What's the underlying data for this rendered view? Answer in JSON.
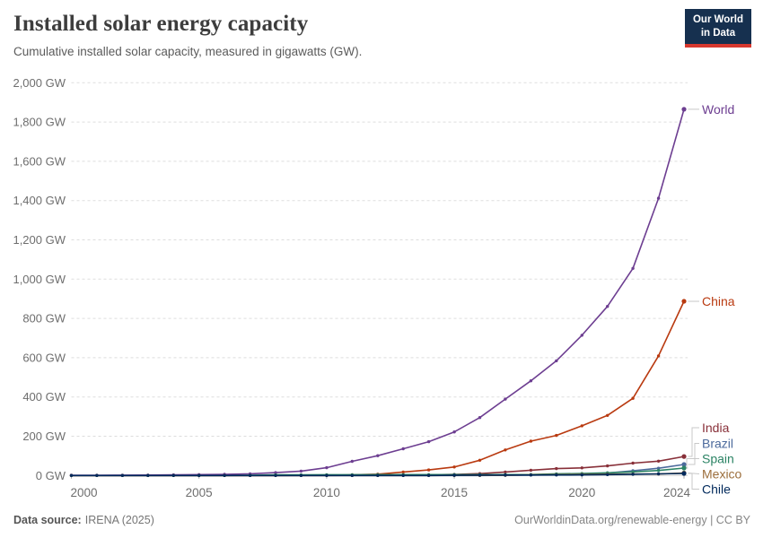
{
  "header": {
    "title": "Installed solar energy capacity",
    "subtitle": "Cumulative installed solar capacity, measured in gigawatts (GW).",
    "logo": {
      "line1": "Our World",
      "line2": "in Data"
    }
  },
  "footer": {
    "source_label": "Data source:",
    "source_value": "IRENA (2025)",
    "credit": "OurWorldinData.org/renewable-energy | CC BY"
  },
  "colors": {
    "grid": "#dddddd",
    "axis_baseline": "#cccccc",
    "tick_text": "#6e6e6e",
    "connector": "#c8c8c8"
  },
  "chart_data": {
    "type": "line",
    "title": "Installed solar energy capacity",
    "subtitle": "Cumulative installed solar capacity, measured in gigawatts (GW).",
    "unit": "GW",
    "xlim": [
      2000,
      2024
    ],
    "ylim": [
      0,
      2000
    ],
    "grid": "horizontal-dashed",
    "legend_position": "labels-at-line-ends-right",
    "x": [
      2000,
      2001,
      2002,
      2003,
      2004,
      2005,
      2006,
      2007,
      2008,
      2009,
      2010,
      2011,
      2012,
      2013,
      2014,
      2015,
      2016,
      2017,
      2018,
      2019,
      2020,
      2021,
      2022,
      2023,
      2024
    ],
    "xticks": [
      2000,
      2005,
      2010,
      2015,
      2020,
      2024
    ],
    "yticks": [
      {
        "value": 0,
        "label": "0 GW"
      },
      {
        "value": 200,
        "label": "200 GW"
      },
      {
        "value": 400,
        "label": "400 GW"
      },
      {
        "value": 600,
        "label": "600 GW"
      },
      {
        "value": 800,
        "label": "800 GW"
      },
      {
        "value": 1000,
        "label": "1,000 GW"
      },
      {
        "value": 1200,
        "label": "1,200 GW"
      },
      {
        "value": 1400,
        "label": "1,400 GW"
      },
      {
        "value": 1600,
        "label": "1,600 GW"
      },
      {
        "value": 1800,
        "label": "1,800 GW"
      },
      {
        "value": 2000,
        "label": "2,000 GW"
      }
    ],
    "series": [
      {
        "name": "World",
        "color": "#6D3E91",
        "label_y": null,
        "values": [
          1.2,
          1.5,
          1.9,
          2.4,
          3.4,
          4.4,
          5.9,
          8.5,
          14.7,
          22.5,
          39.6,
          72.1,
          101,
          136,
          172,
          222,
          295,
          389,
          482,
          584,
          714,
          861,
          1055,
          1412,
          1865
        ]
      },
      {
        "name": "China",
        "color": "#B93A10",
        "label_y": null,
        "values": [
          0.02,
          0.02,
          0.04,
          0.05,
          0.06,
          0.07,
          0.08,
          0.1,
          0.14,
          0.3,
          1,
          3.1,
          6.7,
          17.8,
          28.4,
          43.5,
          77.8,
          130,
          175,
          204,
          253,
          306,
          393,
          609,
          887
        ]
      },
      {
        "name": "India",
        "color": "#883039",
        "label_y": 477,
        "values": [
          0.01,
          0.01,
          0.01,
          0.02,
          0.02,
          0.03,
          0.03,
          0.04,
          0.06,
          0.1,
          0.16,
          0.46,
          1.2,
          2.3,
          3,
          5.6,
          9.8,
          18,
          27,
          35,
          39,
          49,
          63,
          73,
          97
        ]
      },
      {
        "name": "Brazil",
        "color": "#4C6A9C",
        "label_y": 494.5,
        "values": [
          0,
          0,
          0,
          0,
          0,
          0,
          0,
          0,
          0,
          0,
          0,
          0,
          0,
          0.01,
          0.02,
          0.04,
          0.15,
          1.1,
          2.4,
          4.6,
          7.9,
          13,
          24,
          37,
          56
        ]
      },
      {
        "name": "Spain",
        "color": "#2C8465",
        "label_y": 511.5,
        "values": [
          0.01,
          0.01,
          0.02,
          0.02,
          0.03,
          0.06,
          0.15,
          0.7,
          3.4,
          3.4,
          3.9,
          4.3,
          4.6,
          4.7,
          4.7,
          4.7,
          4.7,
          4.7,
          4.8,
          8.8,
          10.1,
          13.7,
          18.2,
          25.5,
          38
        ]
      },
      {
        "name": "Mexico",
        "color": "#9C6E3C",
        "label_y": 528.5,
        "values": [
          0.01,
          0.01,
          0.02,
          0.02,
          0.02,
          0.03,
          0.03,
          0.04,
          0.04,
          0.05,
          0.06,
          0.07,
          0.1,
          0.15,
          0.18,
          0.28,
          0.5,
          1,
          3.1,
          4.4,
          5.6,
          7,
          7.5,
          7.8,
          12.6
        ]
      },
      {
        "name": "Chile",
        "color": "#00295B",
        "label_y": 545.5,
        "values": [
          0,
          0,
          0,
          0,
          0,
          0,
          0,
          0,
          0,
          0,
          0,
          0,
          0.01,
          0.01,
          0.22,
          0.85,
          1.6,
          2.1,
          2.1,
          2.6,
          3.2,
          4.4,
          6.2,
          8.4,
          10.4
        ]
      }
    ]
  }
}
